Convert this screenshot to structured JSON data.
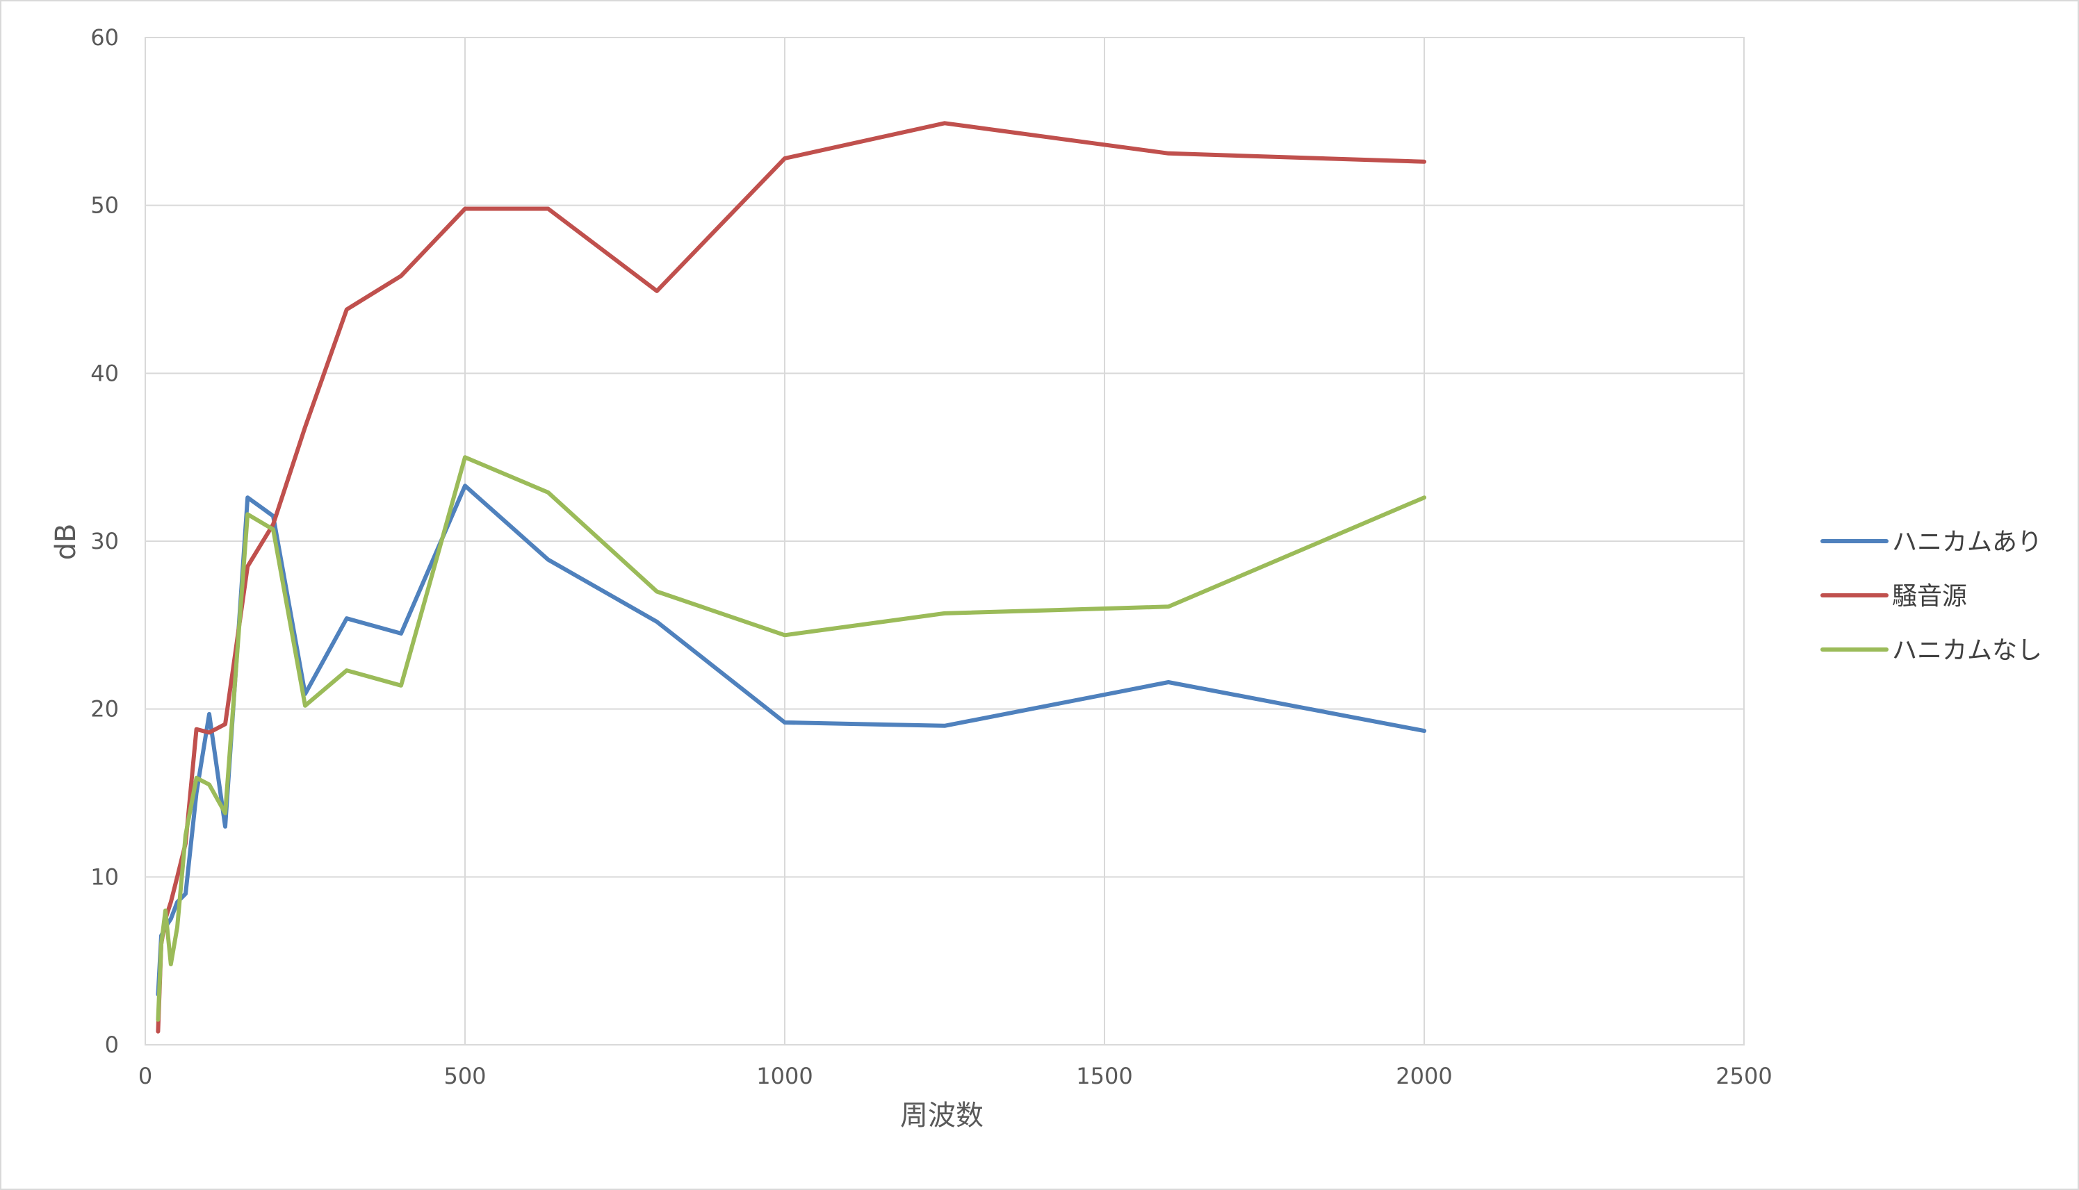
{
  "chart_data": {
    "type": "scatter",
    "mode": "lines",
    "title": "",
    "xlabel": "周波数",
    "ylabel": "dB",
    "xlim": [
      0,
      2500
    ],
    "ylim": [
      0,
      60
    ],
    "x_ticks": [
      0,
      500,
      1000,
      1500,
      2000,
      2500
    ],
    "y_ticks": [
      0,
      10,
      20,
      30,
      40,
      50,
      60
    ],
    "grid": true,
    "legend_position": "right",
    "series": [
      {
        "name": "ハニカムあり",
        "color": "#4f81bd",
        "points": [
          [
            20,
            3.0
          ],
          [
            25,
            6.5
          ],
          [
            31.5,
            7.0
          ],
          [
            40,
            7.5
          ],
          [
            50,
            8.5
          ],
          [
            63,
            9.0
          ],
          [
            80,
            15.0
          ],
          [
            100,
            19.7
          ],
          [
            125,
            13.0
          ],
          [
            160,
            32.6
          ],
          [
            200,
            31.5
          ],
          [
            250,
            20.9
          ],
          [
            315,
            25.4
          ],
          [
            400,
            24.5
          ],
          [
            500,
            33.3
          ],
          [
            630,
            28.9
          ],
          [
            800,
            25.2
          ],
          [
            1000,
            19.2
          ],
          [
            1250,
            19.0
          ],
          [
            1600,
            21.6
          ],
          [
            2000,
            18.7
          ]
        ]
      },
      {
        "name": "騒音源",
        "color": "#c0504d",
        "points": [
          [
            20,
            0.8
          ],
          [
            25,
            6.0
          ],
          [
            31.5,
            7.5
          ],
          [
            40,
            8.5
          ],
          [
            50,
            10.0
          ],
          [
            63,
            12.0
          ],
          [
            80,
            18.8
          ],
          [
            100,
            18.6
          ],
          [
            125,
            19.1
          ],
          [
            160,
            28.5
          ],
          [
            200,
            31.0
          ],
          [
            250,
            36.8
          ],
          [
            315,
            43.8
          ],
          [
            400,
            45.8
          ],
          [
            500,
            49.8
          ],
          [
            630,
            49.8
          ],
          [
            800,
            44.9
          ],
          [
            1000,
            52.8
          ],
          [
            1250,
            54.9
          ],
          [
            1600,
            53.1
          ],
          [
            2000,
            52.6
          ]
        ]
      },
      {
        "name": "ハニカムなし",
        "color": "#9bbb59",
        "points": [
          [
            20,
            1.5
          ],
          [
            25,
            6.0
          ],
          [
            31.5,
            8.0
          ],
          [
            40,
            4.8
          ],
          [
            50,
            7.0
          ],
          [
            63,
            12.5
          ],
          [
            80,
            15.9
          ],
          [
            100,
            15.5
          ],
          [
            125,
            13.8
          ],
          [
            160,
            31.6
          ],
          [
            200,
            30.7
          ],
          [
            250,
            20.2
          ],
          [
            315,
            22.3
          ],
          [
            400,
            21.4
          ],
          [
            500,
            35.0
          ],
          [
            630,
            32.9
          ],
          [
            800,
            27.0
          ],
          [
            1000,
            24.4
          ],
          [
            1250,
            25.7
          ],
          [
            1600,
            26.1
          ],
          [
            2000,
            32.6
          ]
        ]
      }
    ]
  }
}
